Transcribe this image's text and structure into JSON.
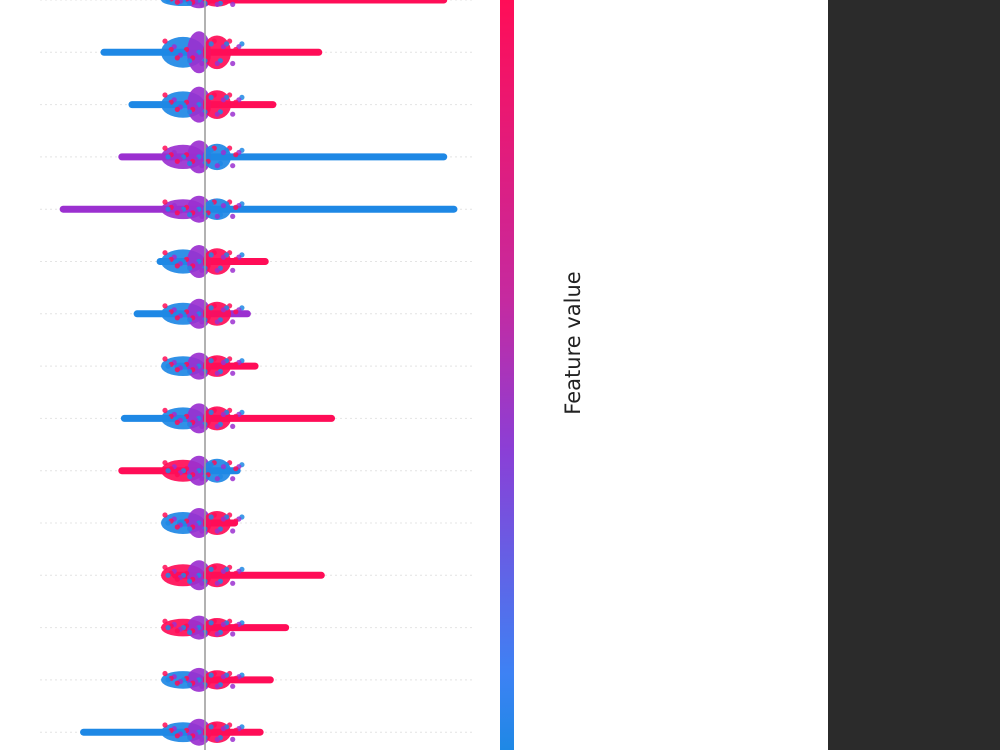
{
  "chart_data": {
    "type": "scatter",
    "title": "",
    "xlabel": "",
    "ylabel": "",
    "colorbar_label": "Feature value",
    "colors": {
      "high": "#ff0d57",
      "low": "#1e88e5",
      "mid": "#9b30d0",
      "grid": "#e4e4e4",
      "baseline": "#999999"
    },
    "grid": true,
    "xlim": [
      -0.6,
      1.1
    ],
    "rows": [
      {
        "min": -0.08,
        "max": 0.95,
        "width": 11,
        "left_color": "blue",
        "right_color": "red",
        "tail": "right-red"
      },
      {
        "min": -0.41,
        "max": 0.46,
        "width": 28,
        "left_color": "blue",
        "right_color": "red",
        "tail": "both"
      },
      {
        "min": -0.3,
        "max": 0.28,
        "width": 24,
        "left_color": "blue",
        "right_color": "red",
        "tail": "both"
      },
      {
        "min": -0.34,
        "max": 0.95,
        "width": 22,
        "left_color": "purple",
        "right_color": "blue",
        "tail": "right-blue"
      },
      {
        "min": -0.57,
        "max": 0.99,
        "width": 18,
        "left_color": "purple",
        "right_color": "blue",
        "tail": "right-blue"
      },
      {
        "min": -0.19,
        "max": 0.25,
        "width": 22,
        "left_color": "blue",
        "right_color": "red",
        "tail": "both"
      },
      {
        "min": -0.28,
        "max": 0.18,
        "width": 20,
        "left_color": "blue",
        "right_color": "mixed",
        "tail": "both"
      },
      {
        "min": -0.12,
        "max": 0.21,
        "width": 18,
        "left_color": "blue",
        "right_color": "red",
        "tail": "both"
      },
      {
        "min": -0.33,
        "max": 0.51,
        "width": 20,
        "left_color": "blue",
        "right_color": "red",
        "tail": "both"
      },
      {
        "min": -0.34,
        "max": 0.14,
        "width": 20,
        "left_color": "red",
        "right_color": "blue",
        "tail": "left-red"
      },
      {
        "min": -0.11,
        "max": 0.13,
        "width": 20,
        "left_color": "blue",
        "right_color": "red",
        "tail": "both"
      },
      {
        "min": -0.13,
        "max": 0.47,
        "width": 20,
        "left_color": "red",
        "right_color": "red",
        "tail": "right-red"
      },
      {
        "min": -0.09,
        "max": 0.33,
        "width": 16,
        "left_color": "red",
        "right_color": "red",
        "tail": "right-red"
      },
      {
        "min": -0.08,
        "max": 0.27,
        "width": 16,
        "left_color": "blue",
        "right_color": "red",
        "tail": "right-red"
      },
      {
        "min": -0.49,
        "max": 0.23,
        "width": 18,
        "left_color": "blue",
        "right_color": "red",
        "tail": "both"
      }
    ]
  }
}
